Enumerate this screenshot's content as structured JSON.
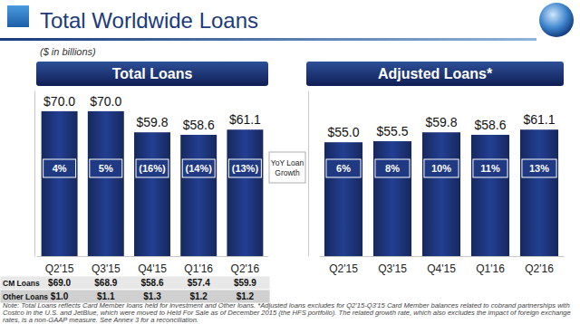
{
  "header": {
    "title": "Total Worldwide Loans",
    "subtitle": "($ in billions)"
  },
  "chart_data": [
    {
      "type": "bar",
      "title": "Total Loans",
      "categories": [
        "Q2'15",
        "Q3'15",
        "Q4'15",
        "Q1'16",
        "Q2'16"
      ],
      "values": [
        70.0,
        70.0,
        59.8,
        58.6,
        61.1
      ],
      "value_labels": [
        "$70.0",
        "$70.0",
        "$59.8",
        "$58.6",
        "$61.1"
      ],
      "data_labels": true,
      "color": "#1d357a",
      "ylim": [
        0,
        80
      ],
      "yticks": [],
      "tick_labels": "x",
      "growth": [
        4,
        5,
        -16,
        -14,
        -13
      ],
      "growth_labels": [
        "4%",
        "5%",
        "(16%)",
        "(14%)",
        "(13%)"
      ]
    },
    {
      "type": "bar",
      "title": "Adjusted Loans*",
      "categories": [
        "Q2'15",
        "Q3'15",
        "Q4'15",
        "Q1'16",
        "Q2'16"
      ],
      "values": [
        55.0,
        55.5,
        59.8,
        58.6,
        61.1
      ],
      "value_labels": [
        "$55.0",
        "$55.5",
        "$59.8",
        "$58.6",
        "$61.1"
      ],
      "data_labels": true,
      "color": "#1d357a",
      "ylim": [
        0,
        80
      ],
      "yticks": [],
      "tick_labels": "x",
      "growth": [
        6,
        8,
        10,
        11,
        13
      ],
      "growth_labels": [
        "6%",
        "8%",
        "10%",
        "11%",
        "13%"
      ]
    }
  ],
  "growth_title": "YoY Loan Growth",
  "table": {
    "rows": [
      [
        "CM Loans",
        "$69.0",
        "$68.9",
        "$58.6",
        "$57.4",
        "$59.9"
      ],
      [
        "Other Loans",
        "$1.0",
        "$1.1",
        "$1.3",
        "$1.2",
        "$1.2"
      ]
    ]
  },
  "note": "Note: Total Loans reflects Card Member loans held for investment and Other loans. *Adjusted loans excludes for Q2'15-Q3'15 Card Member balances related to cobrand partnerships with Costco in the U.S. and JetBlue, which were moved to Held For Sale as of December 2015 (the HFS portfolio). The related growth rate, which also excludes the impact of foreign exchange rates, is a non-GAAP measure. See Annex 3 for a reconciliation."
}
